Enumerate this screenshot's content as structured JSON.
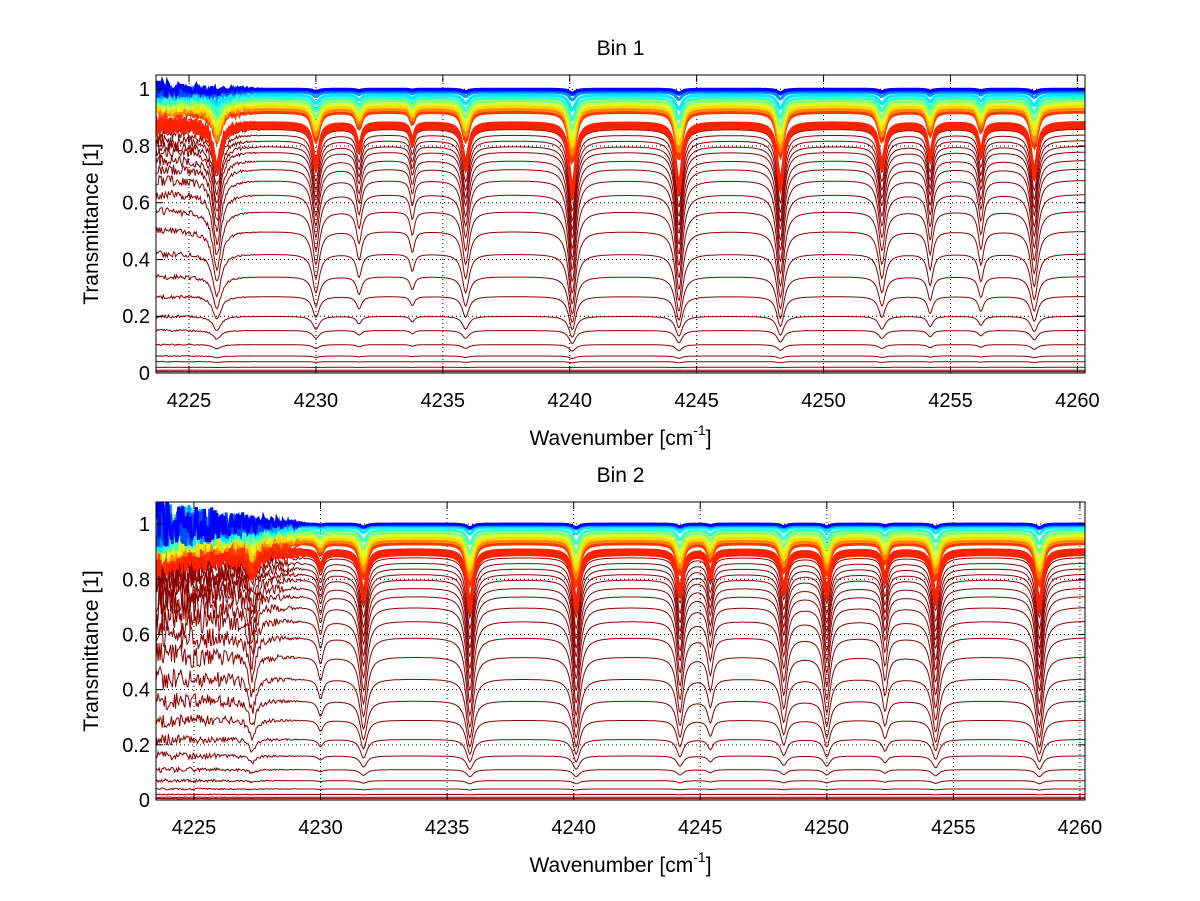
{
  "chart_data": [
    {
      "type": "line",
      "title": "Bin 1",
      "xlabel_main": "Wavenumber [cm",
      "xlabel_sup": "-1",
      "xlabel_end": "]",
      "ylabel": "Transmittance [1]",
      "xlim": [
        4223.7,
        4260.3
      ],
      "ylim": [
        0,
        1.05
      ],
      "grid": true,
      "grid_style": "dotted",
      "xticks": [
        4225,
        4230,
        4235,
        4240,
        4245,
        4250,
        4255,
        4260
      ],
      "yticks": [
        0,
        0.2,
        0.4,
        0.6,
        0.8,
        1
      ],
      "xtick_labels": [
        "4225",
        "4230",
        "4235",
        "4240",
        "4245",
        "4250",
        "4255",
        "4260"
      ],
      "ytick_labels": [
        "0",
        "0.2",
        "0.4",
        "0.6",
        "0.8",
        "1"
      ],
      "series_count": 50,
      "colormap": "jet",
      "baselines_dark": [
        0.005,
        0.01,
        0.02,
        0.04,
        0.06,
        0.1,
        0.15,
        0.2,
        0.27,
        0.34,
        0.42,
        0.5,
        0.57,
        0.63,
        0.68,
        0.72,
        0.75,
        0.78,
        0.8,
        0.82,
        0.84,
        0.86
      ],
      "baselines_band": [
        0.865,
        0.87,
        0.875,
        0.88,
        0.885
      ],
      "baselines_top": [
        0.92,
        0.93,
        0.94,
        0.95,
        0.96,
        0.97,
        0.98,
        0.99,
        0.995,
        1.0
      ],
      "absorption_lines": [
        {
          "x": 4226.1,
          "depth": 0.5,
          "width": 0.18
        },
        {
          "x": 4230.0,
          "depth": 0.45,
          "width": 0.15
        },
        {
          "x": 4231.7,
          "depth": 0.25,
          "width": 0.12
        },
        {
          "x": 4233.8,
          "depth": 0.18,
          "width": 0.1
        },
        {
          "x": 4235.9,
          "depth": 0.45,
          "width": 0.15
        },
        {
          "x": 4240.1,
          "depth": 0.8,
          "width": 0.15
        },
        {
          "x": 4244.3,
          "depth": 0.75,
          "width": 0.15
        },
        {
          "x": 4248.3,
          "depth": 0.7,
          "width": 0.15
        },
        {
          "x": 4252.3,
          "depth": 0.45,
          "width": 0.15
        },
        {
          "x": 4254.2,
          "depth": 0.35,
          "width": 0.12
        },
        {
          "x": 4256.2,
          "depth": 0.3,
          "width": 0.12
        },
        {
          "x": 4258.3,
          "depth": 0.55,
          "width": 0.15
        }
      ],
      "noise_region": {
        "x_start": 4223.7,
        "x_end": 4228.0,
        "amplitude": 0.03
      }
    },
    {
      "type": "line",
      "title": "Bin 2",
      "xlabel_main": "Wavenumber [cm",
      "xlabel_sup": "-1",
      "xlabel_end": "]",
      "ylabel": "Transmittance [1]",
      "xlim": [
        4223.5,
        4260.2
      ],
      "ylim": [
        0,
        1.08
      ],
      "grid": true,
      "grid_style": "dotted",
      "xticks": [
        4225,
        4230,
        4235,
        4240,
        4245,
        4250,
        4255,
        4260
      ],
      "yticks": [
        0,
        0.2,
        0.4,
        0.6,
        0.8,
        1
      ],
      "xtick_labels": [
        "4225",
        "4230",
        "4235",
        "4240",
        "4245",
        "4250",
        "4255",
        "4260"
      ],
      "ytick_labels": [
        "0",
        "0.2",
        "0.4",
        "0.6",
        "0.8",
        "1"
      ],
      "series_count": 50,
      "colormap": "jet",
      "baselines_dark": [
        0.005,
        0.01,
        0.02,
        0.04,
        0.07,
        0.11,
        0.16,
        0.22,
        0.29,
        0.36,
        0.44,
        0.52,
        0.59,
        0.65,
        0.7,
        0.74,
        0.77,
        0.8,
        0.82,
        0.84,
        0.86,
        0.88
      ],
      "baselines_band": [
        0.89,
        0.895,
        0.9,
        0.905,
        0.91
      ],
      "baselines_top": [
        0.93,
        0.94,
        0.95,
        0.96,
        0.97,
        0.98,
        0.99,
        0.995,
        1.0,
        1.0
      ],
      "absorption_lines": [
        {
          "x": 4227.3,
          "depth": 0.35,
          "width": 0.15
        },
        {
          "x": 4230.0,
          "depth": 0.2,
          "width": 0.12
        },
        {
          "x": 4231.7,
          "depth": 0.6,
          "width": 0.15
        },
        {
          "x": 4235.9,
          "depth": 0.75,
          "width": 0.15
        },
        {
          "x": 4240.1,
          "depth": 0.75,
          "width": 0.15
        },
        {
          "x": 4244.2,
          "depth": 0.55,
          "width": 0.14
        },
        {
          "x": 4245.4,
          "depth": 0.3,
          "width": 0.12
        },
        {
          "x": 4248.3,
          "depth": 0.5,
          "width": 0.14
        },
        {
          "x": 4250.0,
          "depth": 0.55,
          "width": 0.14
        },
        {
          "x": 4252.3,
          "depth": 0.35,
          "width": 0.12
        },
        {
          "x": 4254.3,
          "depth": 0.65,
          "width": 0.15
        },
        {
          "x": 4258.4,
          "depth": 0.75,
          "width": 0.15
        }
      ],
      "noise_region": {
        "x_start": 4223.5,
        "x_end": 4229.5,
        "amplitude": 0.1
      }
    }
  ]
}
